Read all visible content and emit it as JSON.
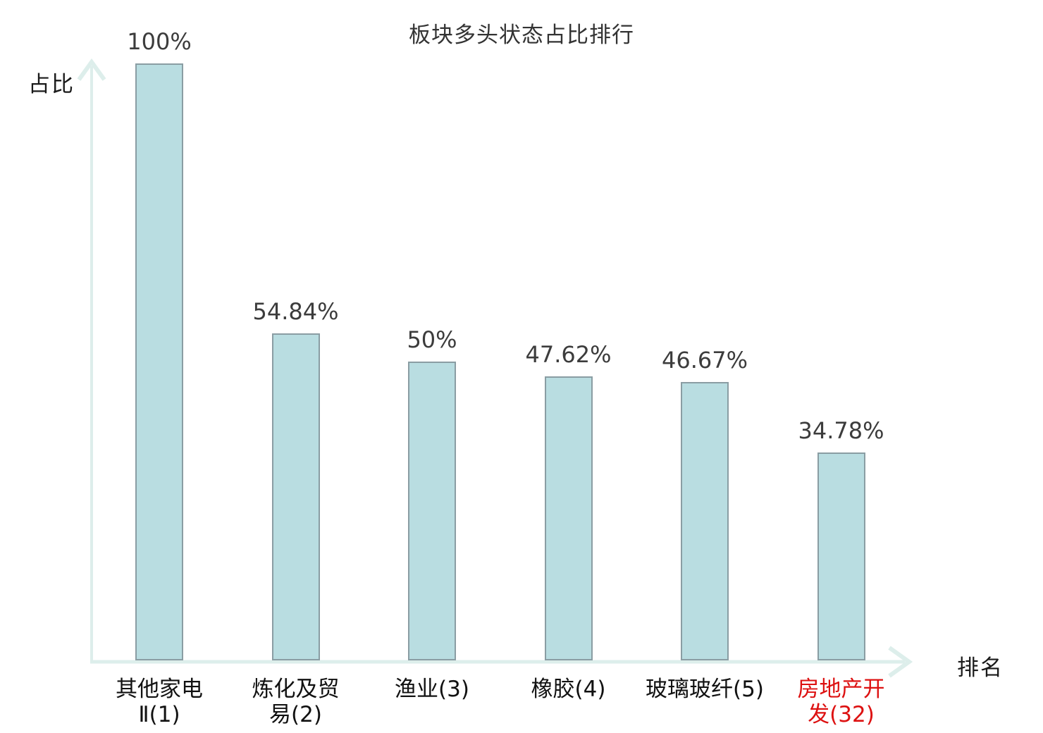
{
  "title": "板块多头状态占比排行",
  "axes": {
    "y_label": "占比",
    "x_label": "排名"
  },
  "chart_data": {
    "type": "bar",
    "title": "板块多头状态占比排行",
    "xlabel": "排名",
    "ylabel": "占比",
    "categories": [
      "其他家电Ⅱ(1)",
      "炼化及贸易(2)",
      "渔业(3)",
      "橡胶(4)",
      "玻璃玻纤(5)",
      "房地产开发(32)"
    ],
    "category_lines": [
      [
        "其他家电",
        "Ⅱ(1)"
      ],
      [
        "炼化及贸",
        "易(2)"
      ],
      [
        "渔业(3)"
      ],
      [
        "橡胶(4)"
      ],
      [
        "玻璃玻纤(5)"
      ],
      [
        "房地产开",
        "发(32)"
      ]
    ],
    "values": [
      100,
      54.84,
      50,
      47.62,
      46.67,
      34.78
    ],
    "value_labels": [
      "100%",
      "54.84%",
      "50%",
      "47.62%",
      "46.67%",
      "34.78%"
    ],
    "highlight_index": 5,
    "ylim": [
      0,
      100
    ],
    "grid": false,
    "legend": false,
    "axis_arrows": true
  },
  "colors": {
    "background": "#ffffff",
    "bar_fill": "#b9dde1",
    "bar_border": "#8a9da3",
    "axis": "#ddeeeb",
    "title_text": "#333333",
    "value_text": "#3c3c3c",
    "category_text": "#111111",
    "highlight_text": "#dd1111"
  }
}
